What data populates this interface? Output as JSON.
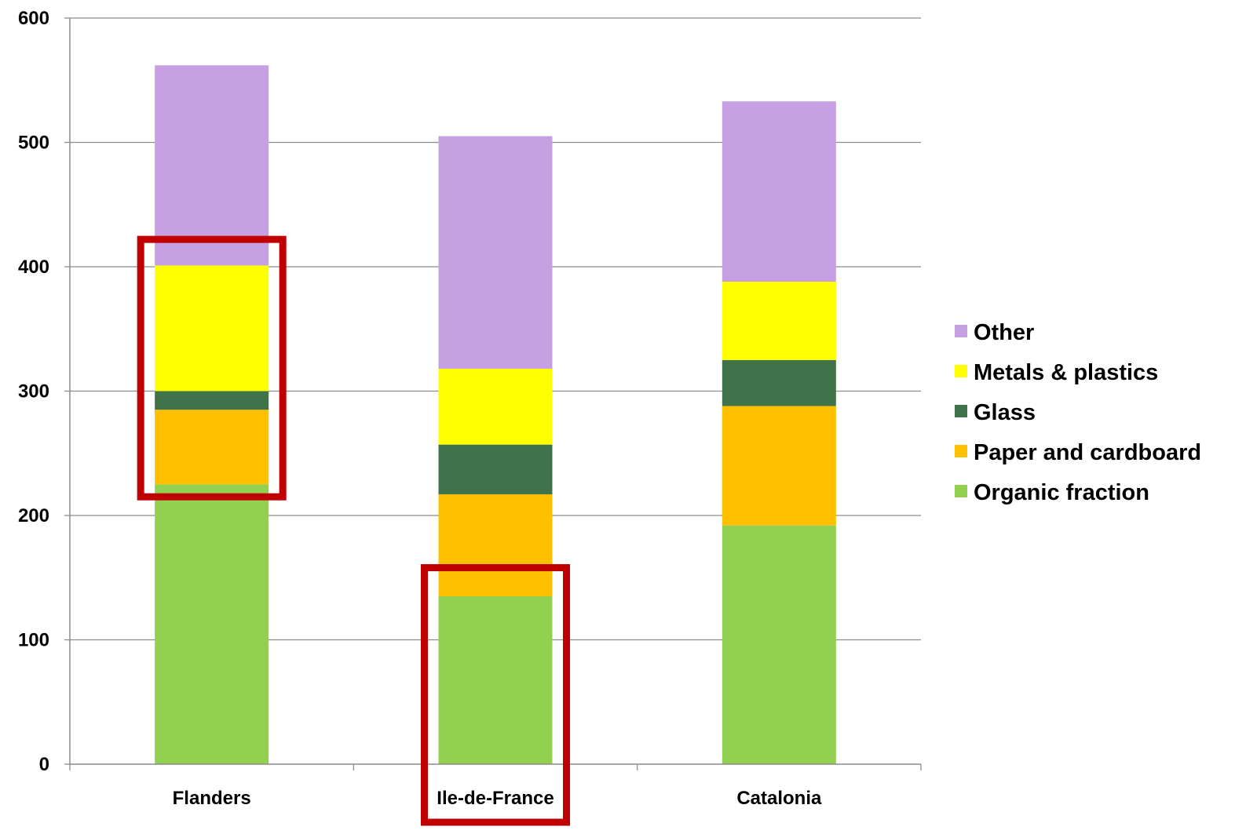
{
  "chart_data": {
    "type": "bar",
    "stacked": true,
    "title": "",
    "xlabel": "",
    "ylabel": "",
    "ylim": [
      0,
      600
    ],
    "yticks": [
      0,
      100,
      200,
      300,
      400,
      500,
      600
    ],
    "grid": true,
    "legend_position": "right",
    "categories": [
      "Flanders",
      "Ile-de-France",
      "Catalonia"
    ],
    "series": [
      {
        "name": "Organic fraction",
        "color": "#92d050",
        "values": [
          225,
          135,
          192
        ]
      },
      {
        "name": "Paper and cardboard",
        "color": "#ffc000",
        "values": [
          60,
          82,
          96
        ]
      },
      {
        "name": "Glass",
        "color": "#41734a",
        "values": [
          15,
          40,
          37
        ]
      },
      {
        "name": "Metals & plastics",
        "color": "#ffff00",
        "values": [
          101,
          61,
          63
        ]
      },
      {
        "name": "Other",
        "color": "#c6a0e3",
        "values": [
          161,
          187,
          145
        ]
      }
    ],
    "highlight_color": "#c00000",
    "highlights": [
      {
        "category": "Flanders",
        "from": 215,
        "to": 422
      },
      {
        "category": "Ile-de-France",
        "from": -50,
        "to": 158
      }
    ]
  }
}
